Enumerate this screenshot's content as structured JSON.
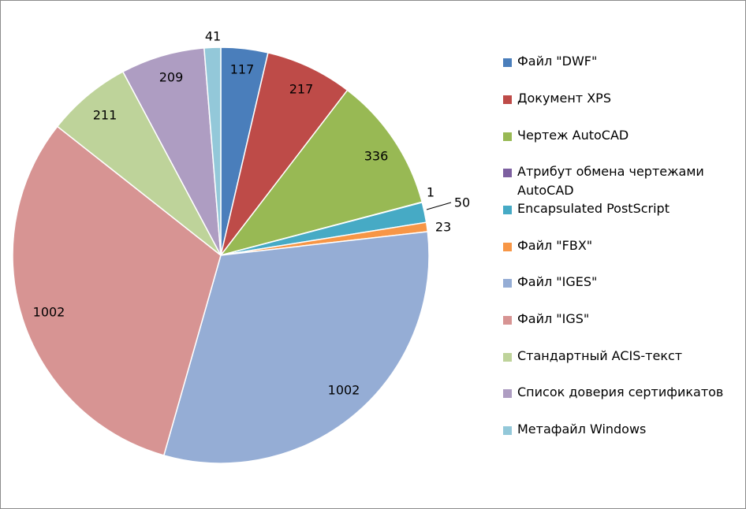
{
  "chart_data": {
    "type": "pie",
    "categories": [
      "Файл \"DWF\"",
      "Документ XPS",
      "Чертеж AutoCAD",
      "Атрибут обмена чертежами AutoCAD",
      "Encapsulated PostScript",
      "Файл \"FBX\"",
      "Файл \"IGES\"",
      "Файл \"IGS\"",
      "Стандартный ACIS-текст",
      "Список доверия сертификатов",
      "Метафайл Windows"
    ],
    "values": [
      117,
      217,
      336,
      1,
      50,
      23,
      1002,
      1002,
      211,
      209,
      41
    ],
    "colors": [
      "#4A7EBB",
      "#BE4B48",
      "#98B954",
      "#7D60A0",
      "#46AAC5",
      "#F79646",
      "#95ADD5",
      "#D79493",
      "#BED39A",
      "#AE9DC2",
      "#93C8D9"
    ],
    "start_angle_deg": 0,
    "direction": "clockwise",
    "legend_position": "right"
  }
}
